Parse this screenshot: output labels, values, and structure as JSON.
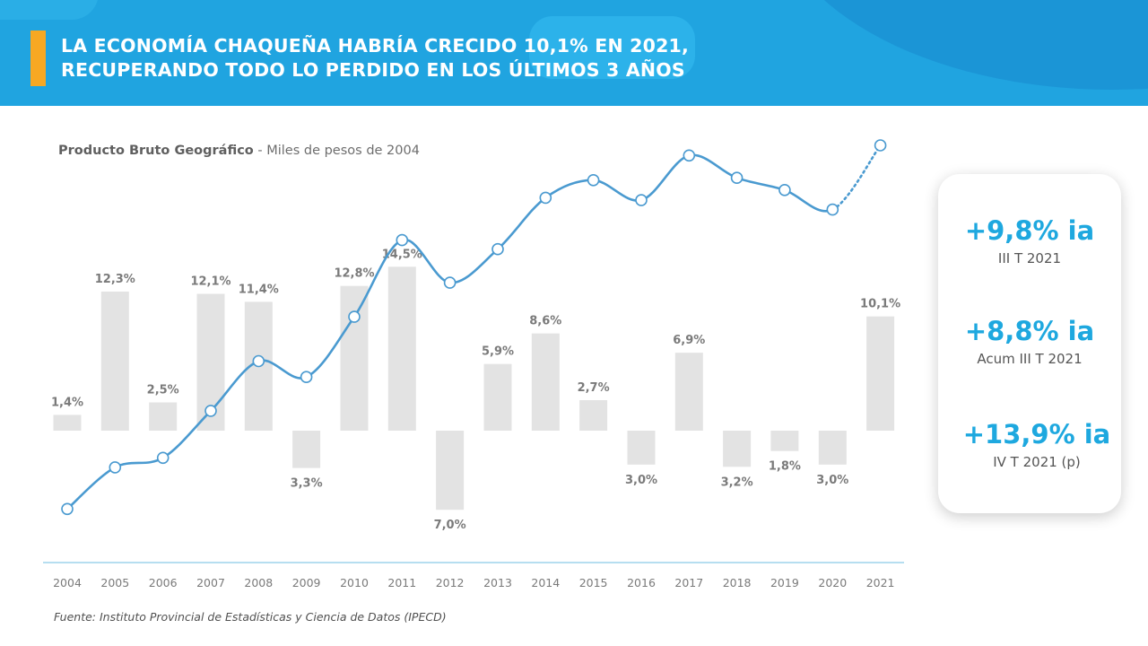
{
  "header": {
    "title_line1": "LA ECONOMÍA CHAQUEÑA HABRÍA CRECIDO 10,1% EN 2021,",
    "title_line2": "RECUPERANDO TODO LO PERDIDO EN LOS ÚLTIMOS 3 AÑOS"
  },
  "chart_heading": {
    "bold": "Producto Bruto Geográfico",
    "rest": " - Miles de pesos de 2004"
  },
  "source": "Fuente: Instituto Provincial de Estadísticas y Ciencia de Datos (IPECD)",
  "stats": [
    {
      "value": "+9,8% ia",
      "label": "III T 2021"
    },
    {
      "value": "+8,8% ia",
      "label": "Acum III T 2021"
    },
    {
      "value": "+13,9% ia",
      "label": "IV T 2021 (p)"
    }
  ],
  "colors": {
    "header": "#20a4e0",
    "accent": "#f7a823",
    "bars": "#e3e3e3",
    "line": "#4a9ad0",
    "stat_values": "#1ea8df"
  },
  "chart_data": {
    "type": "bar+line",
    "categories": [
      "2004",
      "2005",
      "2006",
      "2007",
      "2008",
      "2009",
      "2010",
      "2011",
      "2012",
      "2013",
      "2014",
      "2015",
      "2016",
      "2017",
      "2018",
      "2019",
      "2020",
      "2021"
    ],
    "series": [
      {
        "type": "bar",
        "values": [
          1.4,
          12.3,
          2.5,
          12.1,
          11.4,
          -3.3,
          12.8,
          14.5,
          -7.0,
          5.9,
          8.6,
          2.7,
          -3.0,
          6.9,
          -3.2,
          -1.8,
          -3.0,
          10.1
        ],
        "labels": [
          "1,4%",
          "12,3%",
          "2,5%",
          "12,1%",
          "11,4%",
          "3,3%",
          "12,8%",
          "14,5%",
          "7,0%",
          "5,9%",
          "8,6%",
          "2,7%",
          "3,0%",
          "6,9%",
          "3,2%",
          "1,8%",
          "3,0%",
          "10,1%"
        ]
      },
      {
        "type": "line",
        "values": [
          100.0,
          112.3,
          115.1,
          129.0,
          143.7,
          139.0,
          156.8,
          179.5,
          166.9,
          176.8,
          192.0,
          197.2,
          191.3,
          204.5,
          197.9,
          194.3,
          188.5,
          207.5
        ],
        "projected_from": "2020"
      }
    ],
    "grid": false,
    "legend": "none"
  }
}
